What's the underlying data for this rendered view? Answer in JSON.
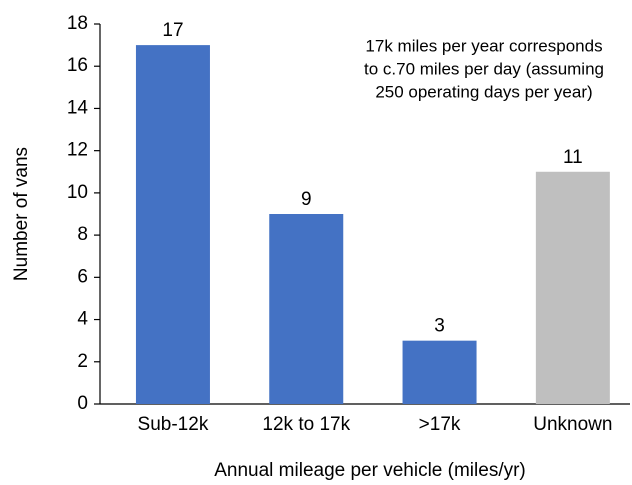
{
  "chart_data": {
    "type": "bar",
    "categories": [
      "Sub-12k",
      "12k to 17k",
      ">17k",
      "Unknown"
    ],
    "values": [
      17,
      9,
      3,
      11
    ],
    "colors": [
      "#4472c4",
      "#4472c4",
      "#4472c4",
      "#bfbfbf"
    ],
    "ylim": [
      0,
      18
    ],
    "yticks": [
      0,
      2,
      4,
      6,
      8,
      10,
      12,
      14,
      16,
      18
    ],
    "grid": false,
    "x_label": "Annual mileage per vehicle (miles/yr)",
    "y_label": "Number of vans",
    "annotation": [
      "17k miles per year corresponds",
      "to c.70 miles per day (assuming",
      "250 operating days per year)"
    ]
  }
}
